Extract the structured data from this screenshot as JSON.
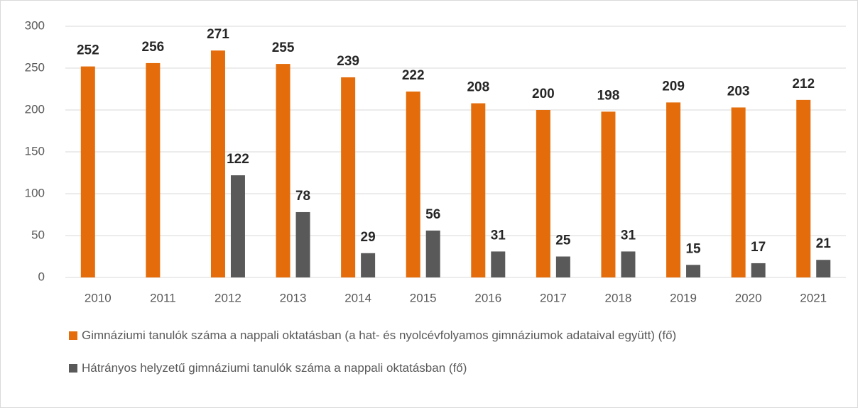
{
  "chart_data": {
    "type": "bar",
    "categories": [
      "2010",
      "2011",
      "2012",
      "2013",
      "2014",
      "2015",
      "2016",
      "2017",
      "2018",
      "2019",
      "2020",
      "2021"
    ],
    "series": [
      {
        "name": "Gimnáziumi tanulók száma a nappali oktatásban (a hat- és nyolcévfolyamos gimnáziumok adataival együtt) (fő)",
        "color": "#e46c0a",
        "values": [
          252,
          256,
          271,
          255,
          239,
          222,
          208,
          200,
          198,
          209,
          203,
          212
        ]
      },
      {
        "name": "Hátrányos helyzetű gimnáziumi tanulók száma a nappali oktatásban (fő)",
        "color": "#595959",
        "values": [
          null,
          null,
          122,
          78,
          29,
          56,
          31,
          25,
          31,
          15,
          17,
          21
        ]
      }
    ],
    "ylim": [
      0,
      300
    ],
    "yticks": [
      0,
      50,
      100,
      150,
      200,
      250,
      300
    ],
    "grid": true,
    "legend": "bottom"
  }
}
